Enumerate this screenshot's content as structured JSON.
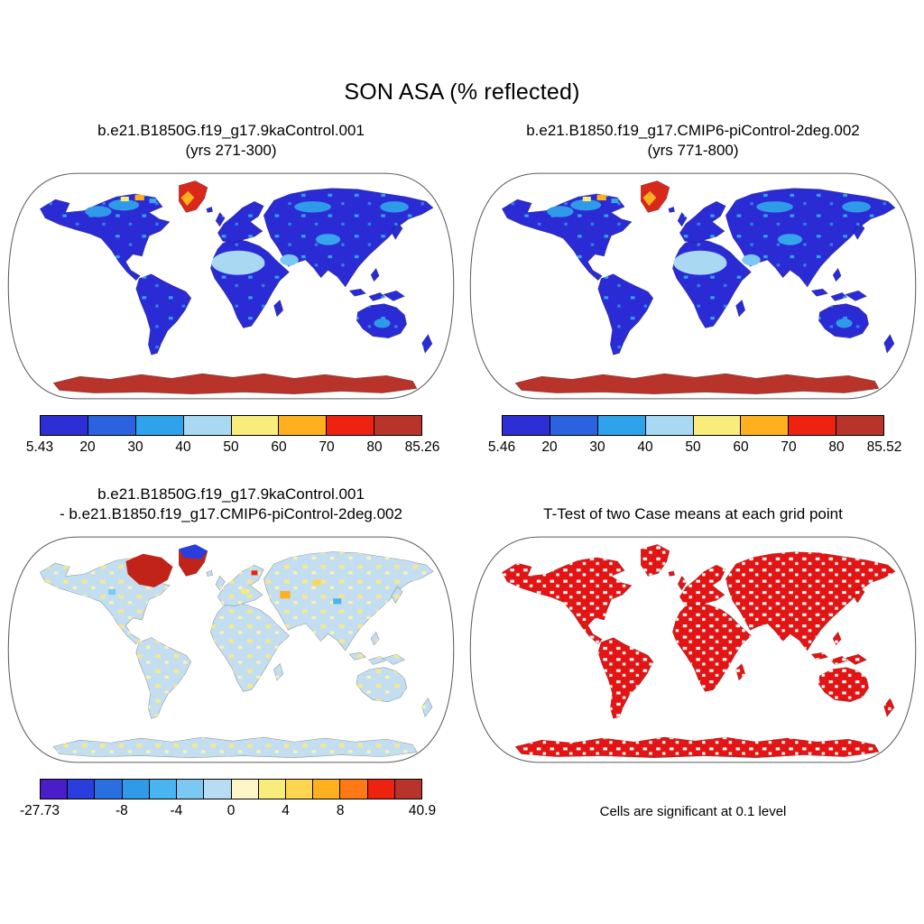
{
  "figure": {
    "title": "SON ASA (% reflected)"
  },
  "panels": {
    "top_left": {
      "title_line1": "b.e21.B1850G.f19_g17.9kaControl.001",
      "title_line2": "(yrs 271-300)",
      "map_colors": {
        "land": "#2b2bd5",
        "greenland": "#d8281c",
        "antarctica": "#b8332a"
      },
      "colorbar": {
        "colors": [
          "#2e2ed6",
          "#2a62e0",
          "#2fa2ec",
          "#a8d8f2",
          "#f8ec7a",
          "#ffb01e",
          "#ee2211",
          "#b8332a"
        ],
        "ticks": [
          {
            "label": "5.43",
            "pos": 0
          },
          {
            "label": "20",
            "pos": 0.125
          },
          {
            "label": "30",
            "pos": 0.25
          },
          {
            "label": "40",
            "pos": 0.375
          },
          {
            "label": "50",
            "pos": 0.5
          },
          {
            "label": "60",
            "pos": 0.625
          },
          {
            "label": "70",
            "pos": 0.75
          },
          {
            "label": "80",
            "pos": 0.875
          },
          {
            "label": "85.26",
            "pos": 1
          }
        ]
      }
    },
    "top_right": {
      "title_line1": "b.e21.B1850.f19_g17.CMIP6-piControl-2deg.002",
      "title_line2": "(yrs 771-800)",
      "map_colors": {
        "land": "#2b2bd5",
        "greenland": "#d8281c",
        "antarctica": "#b8332a"
      },
      "colorbar": {
        "colors": [
          "#2e2ed6",
          "#2a62e0",
          "#2fa2ec",
          "#a8d8f2",
          "#f8ec7a",
          "#ffb01e",
          "#ee2211",
          "#b8332a"
        ],
        "ticks": [
          {
            "label": "5.46",
            "pos": 0
          },
          {
            "label": "20",
            "pos": 0.125
          },
          {
            "label": "30",
            "pos": 0.25
          },
          {
            "label": "40",
            "pos": 0.375
          },
          {
            "label": "50",
            "pos": 0.5
          },
          {
            "label": "60",
            "pos": 0.625
          },
          {
            "label": "70",
            "pos": 0.75
          },
          {
            "label": "80",
            "pos": 0.875
          },
          {
            "label": "85.52",
            "pos": 1
          }
        ]
      }
    },
    "bottom_left": {
      "title_line1": "b.e21.B1850G.f19_g17.9kaControl.001",
      "title_line2": "- b.e21.B1850.f19_g17.CMIP6-piControl-2deg.002",
      "map_colors": {
        "land": "#c3def1",
        "hotspot": "#c22318",
        "antarctica": "#c3def1"
      },
      "colorbar": {
        "colors": [
          "#4a1dc8",
          "#2a3ede",
          "#2a6fe0",
          "#2f9ae8",
          "#4ab4f0",
          "#7cc8f2",
          "#b8ddf2",
          "#fdf6c8",
          "#f8ec7a",
          "#ffd44e",
          "#ffb01e",
          "#ff7a14",
          "#ee2211",
          "#b8332a"
        ],
        "ticks": [
          {
            "label": "-27.73",
            "pos": 0
          },
          {
            "label": "-8",
            "pos": 0.2143
          },
          {
            "label": "-4",
            "pos": 0.3571
          },
          {
            "label": "0",
            "pos": 0.5
          },
          {
            "label": "4",
            "pos": 0.6429
          },
          {
            "label": "8",
            "pos": 0.7857
          },
          {
            "label": "40.9",
            "pos": 1
          }
        ]
      }
    },
    "bottom_right": {
      "title": "T-Test of two Case means at each grid point",
      "caption": "Cells are significant at 0.1 level",
      "map_colors": {
        "land": "#e21414"
      }
    }
  },
  "chart_data": [
    {
      "type": "heatmap",
      "subtype": "global map, Robinson projection",
      "variable": "ASA (% reflected)",
      "season": "SON",
      "title": "b.e21.B1850G.f19_g17.9kaControl.001",
      "subtitle": "(yrs 271-300)",
      "min": 5.43,
      "max": 85.26,
      "colorbar_labeled_levels": [
        5.43,
        20,
        30,
        40,
        50,
        60,
        70,
        80,
        85.26
      ],
      "n_color_segments": 8,
      "palette": [
        "#2e2ed6",
        "#2a62e0",
        "#2fa2ec",
        "#a8d8f2",
        "#f8ec7a",
        "#ffb01e",
        "#ee2211",
        "#b8332a"
      ],
      "notes": "Most continents low albedo (blue 10-30%), Sahara/Arabia ~40%, Greenland and Antarctica high (70-85%)"
    },
    {
      "type": "heatmap",
      "subtype": "global map, Robinson projection",
      "variable": "ASA (% reflected)",
      "season": "SON",
      "title": "b.e21.B1850.f19_g17.CMIP6-piControl-2deg.002",
      "subtitle": "(yrs 771-800)",
      "min": 5.46,
      "max": 85.52,
      "colorbar_labeled_levels": [
        5.46,
        20,
        30,
        40,
        50,
        60,
        70,
        80,
        85.52
      ],
      "n_color_segments": 8,
      "palette": [
        "#2e2ed6",
        "#2a62e0",
        "#2fa2ec",
        "#a8d8f2",
        "#f8ec7a",
        "#ffb01e",
        "#ee2211",
        "#b8332a"
      ],
      "notes": "Pattern nearly identical to 9kaControl case"
    },
    {
      "type": "heatmap",
      "subtype": "global difference map, Robinson projection",
      "variable": "ASA difference (% reflected)",
      "title": "b.e21.B1850G.f19_g17.9kaControl.001 - b.e21.B1850.f19_g17.CMIP6-piControl-2deg.002",
      "min": -27.73,
      "max": 40.9,
      "colorbar_labeled_levels": [
        -27.73,
        -8,
        -4,
        0,
        4,
        8,
        40.9
      ],
      "n_color_segments": 14,
      "palette": [
        "#4a1dc8",
        "#2a3ede",
        "#2a6fe0",
        "#2f9ae8",
        "#4ab4f0",
        "#7cc8f2",
        "#b8ddf2",
        "#fdf6c8",
        "#f8ec7a",
        "#ffd44e",
        "#ffb01e",
        "#ff7a14",
        "#ee2211",
        "#b8332a"
      ],
      "notes": "Mostly small differences (pale blue/yellow); strong positive anomaly (dark red) over Hudson Bay / NE Canada; negative (dark blue) over parts of Greenland/Arctic"
    },
    {
      "type": "heatmap",
      "subtype": "significance mask, Robinson projection",
      "title": "T-Test of two Case means at each grid point",
      "annotation": "Cells are significant at 0.1 level",
      "significance_color": "#e21414",
      "notes": "Red cells mark grid points where the two case means differ significantly at the 0.1 level; covers most land areas with scattered insignificant (white) cells"
    }
  ]
}
